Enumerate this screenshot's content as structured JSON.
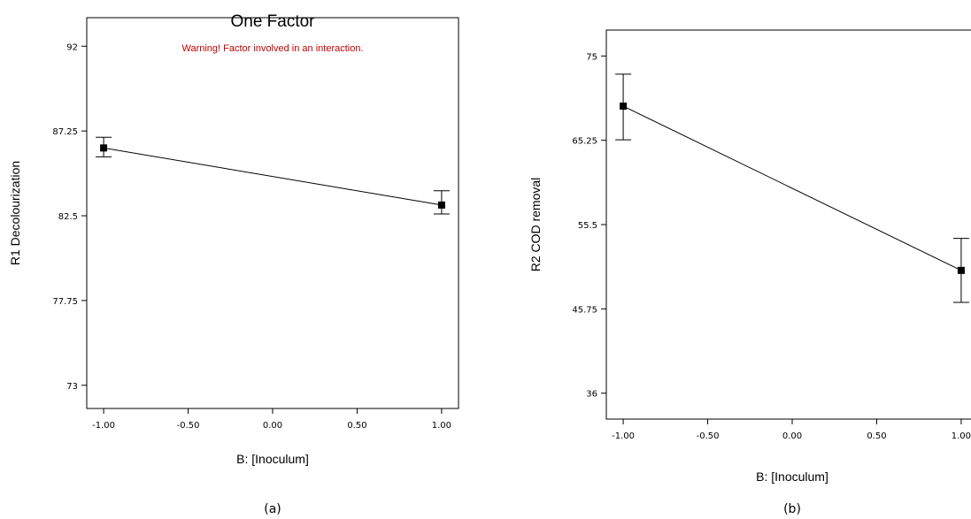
{
  "chart_data": [
    {
      "type": "line",
      "panel_label": "(a)",
      "title": "One Factor",
      "annotation": "Warning! Factor involved in an interaction.",
      "xlabel": "B: [Inoculum]",
      "ylabel": "R1 Decolourization",
      "xlim": [
        -1.1,
        1.1
      ],
      "ylim": [
        71.7,
        93.6
      ],
      "x_ticks": [
        -1.0,
        -0.5,
        0.0,
        0.5,
        1.0
      ],
      "x_tick_labels": [
        "-1.00",
        "-0.50",
        "0.00",
        "0.50",
        "1.00"
      ],
      "y_ticks": [
        73,
        77.75,
        82.5,
        87.25,
        92
      ],
      "y_tick_labels": [
        "73",
        "77.75",
        "82.5",
        "87.25",
        "92"
      ],
      "series": [
        {
          "x": [
            -1.0,
            1.0
          ],
          "y": [
            86.3,
            83.1
          ],
          "err_low": [
            85.8,
            82.6
          ],
          "err_high": [
            86.9,
            83.9
          ]
        }
      ]
    },
    {
      "type": "line",
      "panel_label": "(b)",
      "title": "",
      "annotation": "",
      "xlabel": "B: [Inoculum]",
      "ylabel": "R2 COD removal",
      "xlim": [
        -1.1,
        1.1
      ],
      "ylim": [
        33.0,
        78.0
      ],
      "x_ticks": [
        -1.0,
        -0.5,
        0.0,
        0.5,
        1.0
      ],
      "x_tick_labels": [
        "-1.00",
        "-0.50",
        "0.00",
        "0.50",
        "1.00"
      ],
      "y_ticks": [
        36,
        45.75,
        55.5,
        65.25,
        75
      ],
      "y_tick_labels": [
        "36",
        "45.75",
        "55.5",
        "65.25",
        "75"
      ],
      "series": [
        {
          "x": [
            -1.0,
            1.0
          ],
          "y": [
            69.2,
            50.2
          ],
          "err_low": [
            65.3,
            46.5
          ],
          "err_high": [
            72.9,
            53.9
          ]
        }
      ]
    }
  ]
}
